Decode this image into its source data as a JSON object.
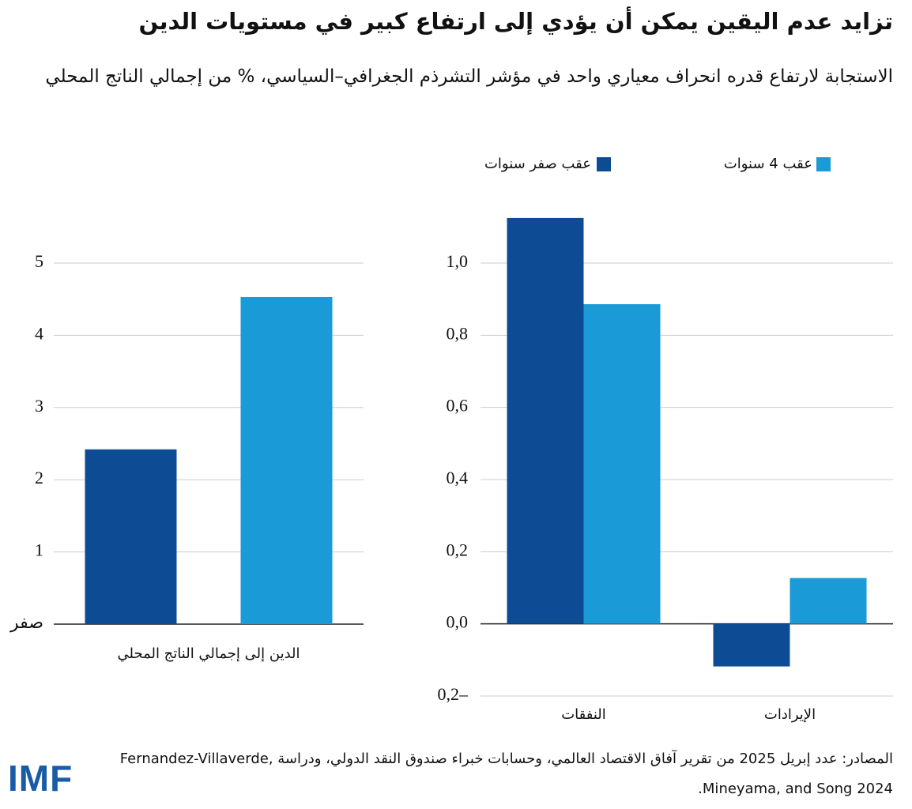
{
  "title": "تزايد عدم اليقين يمكن أن يؤدي إلى ارتفاع كبير في مستويات الدين",
  "subtitle": "الاستجابة لارتفاع قدره انحراف معياري واحد في مؤشر التشرذم الجغرافي–السياسي، % من إجمالي الناتج المحلي",
  "legend": [
    {
      "name": "عقب صفر سنوات",
      "color": "#0d4c94"
    },
    {
      "name": "عقب 4 سنوات",
      "color": "#1a9ad6"
    }
  ],
  "chart_data": [
    {
      "type": "bar",
      "categories": [
        "الدين إلى إجمالي الناتج المحلي"
      ],
      "series": [
        {
          "values": [
            2.42
          ]
        },
        {
          "values": [
            4.53
          ]
        }
      ],
      "ylim": [
        0,
        5
      ],
      "yticks": [
        {
          "value": 0,
          "label": "صفر"
        },
        1,
        2,
        3,
        4,
        5
      ],
      "grid": true
    },
    {
      "type": "bar",
      "categories": [
        "النفقات",
        "الإيرادات"
      ],
      "series": [
        {
          "values": [
            1.125,
            -0.118
          ]
        },
        {
          "values": [
            0.886,
            0.127
          ]
        }
      ],
      "ylim": [
        -0.2,
        1.15
      ],
      "yticks": [
        {
          "value": -0.2,
          "label": "0,2–"
        },
        {
          "value": 0,
          "label": "0,0"
        },
        {
          "value": 0.2,
          "label": "0,2"
        },
        {
          "value": 0.4,
          "label": "0,4"
        },
        {
          "value": 0.6,
          "label": "0,6"
        },
        {
          "value": 0.8,
          "label": "0,8"
        },
        {
          "value": 1.0,
          "label": "1,0"
        }
      ],
      "grid": true
    }
  ],
  "source": "المصادر: عدد إبريل 2025 من تقرير آفاق الاقتصاد العالمي، وحسابات خبراء صندوق النقد الدولي، ودراسة Fernandez-Villaverde, Mineyama, and Song 2024.",
  "logo": "IMF"
}
